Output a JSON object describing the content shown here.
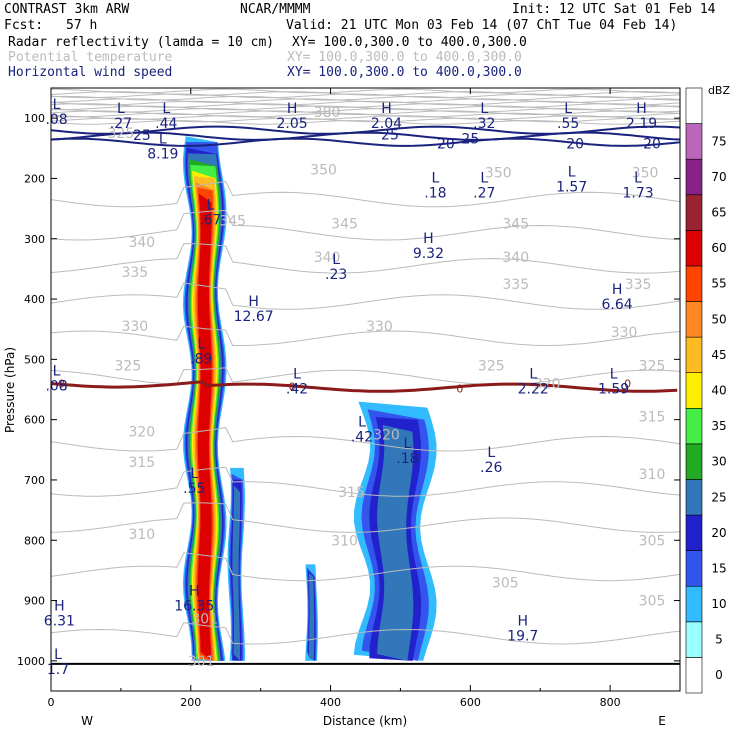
{
  "header": {
    "model": "CONTRAST  3km ARW",
    "org": "NCAR/MMMM",
    "init": "Init: 12 UTC Sat 01 Feb 14",
    "fcst_label": "Fcst:",
    "fcst_value": "57 h",
    "valid": "Valid: 21 UTC Mon 03 Feb 14 (07 ChT Tue 04 Feb 14)",
    "fields": [
      {
        "name": "Radar reflectivity (lamda = 10 cm)",
        "xy": "XY= 100.0,300.0 to 400.0,300.0"
      },
      {
        "name": "Potential temperature",
        "xy": "XY= 100.0,300.0 to 400.0,300.0"
      },
      {
        "name": "Horizontal wind speed",
        "xy": "XY= 100.0,300.0 to 400.0,300.0"
      }
    ]
  },
  "colors": {
    "reflectivity": "#000000",
    "potential_temperature": "#bbbbbb",
    "wind_speed": "#1a237e",
    "zero_contour": "#8b1a1a"
  },
  "chart_data": {
    "type": "heatmap",
    "xlabel": "Distance (km)",
    "ylabel": "Pressure (hPa)",
    "x_ticks": [
      0,
      200,
      400,
      600,
      800
    ],
    "y_ticks": [
      100,
      200,
      300,
      400,
      500,
      600,
      700,
      800,
      900,
      1000
    ],
    "xlim": [
      0,
      900
    ],
    "ylim": [
      1050,
      50
    ],
    "x_end_labels": {
      "left": "W",
      "right": "E"
    },
    "colorbar": {
      "unit": "dBZ",
      "levels": [
        0,
        5,
        10,
        15,
        20,
        25,
        30,
        35,
        40,
        45,
        50,
        55,
        60,
        65,
        70,
        75
      ],
      "colors": [
        "#ffffff",
        "#99ffff",
        "#33bbff",
        "#3355ee",
        "#2222cc",
        "#3377bb",
        "#22aa22",
        "#44ee44",
        "#ffee00",
        "#ffbb22",
        "#ff8822",
        "#ff4400",
        "#dd0000",
        "#992233",
        "#882288",
        "#bb66bb",
        "#ffffff"
      ]
    },
    "reflectivity_cells": [
      {
        "x": [
          195,
          245
        ],
        "p_top": 130,
        "p_bot": 1000,
        "peak_dbz": 55
      },
      {
        "x": [
          255,
          275
        ],
        "p_top": 680,
        "p_bot": 1000,
        "peak_dbz": 20
      },
      {
        "x": [
          365,
          380
        ],
        "p_top": 840,
        "p_bot": 1000,
        "peak_dbz": 20
      },
      {
        "x": [
          445,
          540
        ],
        "p_top": 570,
        "p_bot": 1000,
        "peak_dbz": 20
      }
    ],
    "theta_labels": [
      "380",
      "325",
      "350",
      "350",
      "350",
      "345",
      "345",
      "345",
      "340",
      "340",
      "340",
      "335",
      "335",
      "335",
      "330",
      "330",
      "330",
      "325",
      "325",
      "325",
      "320",
      "320",
      "320",
      "315",
      "315",
      "315",
      "310",
      "310",
      "310",
      "305",
      "305",
      "305",
      "301",
      "301"
    ],
    "wind_labels": [
      "25",
      "25",
      "20",
      "25",
      "20",
      "20"
    ],
    "wind_zero_labels": [
      "0",
      "0",
      "0",
      "0"
    ],
    "extrema": [
      {
        "type": "L",
        "value": ".27",
        "x": 100,
        "p": 95
      },
      {
        "type": "L",
        "value": ".44",
        "x": 165,
        "p": 95
      },
      {
        "type": "H",
        "value": "2.05",
        "x": 345,
        "p": 95
      },
      {
        "type": "H",
        "value": "2.04",
        "x": 480,
        "p": 95
      },
      {
        "type": "L",
        "value": ".32",
        "x": 620,
        "p": 95
      },
      {
        "type": "L",
        "value": ".55",
        "x": 740,
        "p": 95
      },
      {
        "type": "H",
        "value": "2.19",
        "x": 845,
        "p": 95
      },
      {
        "type": "L",
        "value": "8.19",
        "x": 160,
        "p": 145
      },
      {
        "type": "L",
        "value": ".18",
        "x": 550,
        "p": 210
      },
      {
        "type": "L",
        "value": ".27",
        "x": 620,
        "p": 210
      },
      {
        "type": "L",
        "value": "1.57",
        "x": 745,
        "p": 200
      },
      {
        "type": "L",
        "value": "1.73",
        "x": 840,
        "p": 210
      },
      {
        "type": "L",
        "value": ".67",
        "x": 228,
        "p": 255
      },
      {
        "type": "H",
        "value": "9.32",
        "x": 540,
        "p": 310
      },
      {
        "type": "L",
        "value": ".23",
        "x": 408,
        "p": 345
      },
      {
        "type": "H",
        "value": "6.64",
        "x": 810,
        "p": 395
      },
      {
        "type": "H",
        "value": "12.67",
        "x": 290,
        "p": 415
      },
      {
        "type": "L",
        "value": ".89",
        "x": 215,
        "p": 485
      },
      {
        "type": "L",
        "value": ".42",
        "x": 352,
        "p": 535
      },
      {
        "type": "L",
        "value": "2.22",
        "x": 690,
        "p": 535
      },
      {
        "type": "L",
        "value": "1.59",
        "x": 805,
        "p": 535
      },
      {
        "type": "L",
        "value": ".42",
        "x": 445,
        "p": 615
      },
      {
        "type": "L",
        "value": ".18",
        "x": 510,
        "p": 650
      },
      {
        "type": "L",
        "value": ".26",
        "x": 630,
        "p": 665
      },
      {
        "type": "L",
        "value": ".55",
        "x": 205,
        "p": 700
      },
      {
        "type": "H",
        "value": "16.35",
        "x": 205,
        "p": 895
      },
      {
        "type": "H",
        "value": "6.31",
        "x": 12,
        "p": 920
      },
      {
        "type": "H",
        "value": "19.7",
        "x": 675,
        "p": 945
      },
      {
        "type": "L",
        "value": ".08",
        "x": 8,
        "p": 88
      },
      {
        "type": "L",
        "value": ".08",
        "x": 8,
        "p": 530
      },
      {
        "type": "L",
        "value": "1.7",
        "x": 10,
        "p": 1000
      }
    ]
  }
}
